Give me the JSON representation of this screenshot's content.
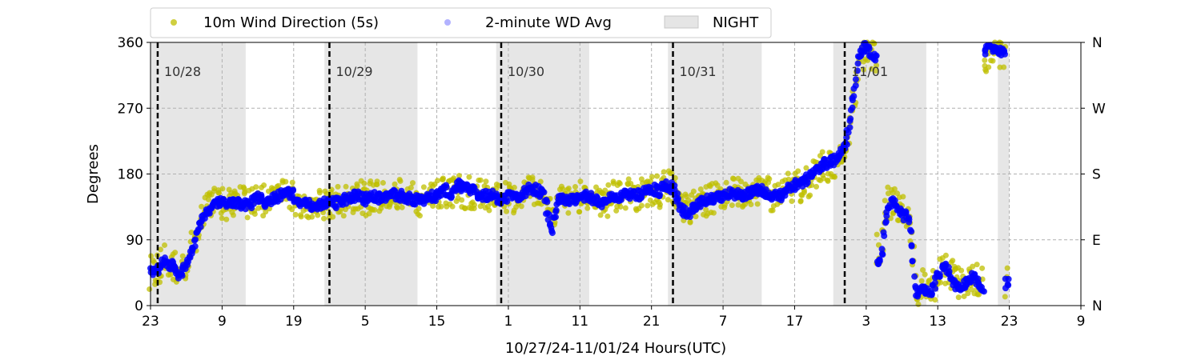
{
  "chart_data": {
    "type": "scatter",
    "title": "",
    "xlabel": "10/27/24-11/01/24  Hours(UTC)",
    "ylabel": "Degrees",
    "x_unit": "hours since 10/27 00:00 UTC",
    "xlim": [
      23,
      153
    ],
    "ylim": [
      0,
      360
    ],
    "x_ticks": [
      {
        "x": 23,
        "label": "23"
      },
      {
        "x": 33,
        "label": "9"
      },
      {
        "x": 43,
        "label": "19"
      },
      {
        "x": 53,
        "label": "5"
      },
      {
        "x": 63,
        "label": "15"
      },
      {
        "x": 73,
        "label": "1"
      },
      {
        "x": 83,
        "label": "11"
      },
      {
        "x": 93,
        "label": "21"
      },
      {
        "x": 103,
        "label": "7"
      },
      {
        "x": 113,
        "label": "17"
      },
      {
        "x": 123,
        "label": "3"
      },
      {
        "x": 133,
        "label": "13"
      },
      {
        "x": 143,
        "label": "23"
      },
      {
        "x": 153,
        "label": "9"
      }
    ],
    "y_ticks": [
      0,
      90,
      180,
      270,
      360
    ],
    "y2_ticks": [
      {
        "y": 0,
        "label": "N"
      },
      {
        "y": 90,
        "label": "E"
      },
      {
        "y": 180,
        "label": "S"
      },
      {
        "y": 270,
        "label": "W"
      },
      {
        "y": 360,
        "label": "N"
      }
    ],
    "grid": true,
    "legend": {
      "placement": "top",
      "entries": [
        {
          "label": "10m Wind Direction (5s)",
          "color": "#bfbf00",
          "marker": "circle"
        },
        {
          "label": "2-minute WD Avg",
          "color": "#0000ff",
          "marker": "circle",
          "alpha": 0.3
        },
        {
          "label": "NIGHT",
          "color": "#d3d3d3",
          "marker": "patch"
        }
      ]
    },
    "night_periods": [
      [
        23,
        36.3
      ],
      [
        47.3,
        60.3
      ],
      [
        71.3,
        84.3
      ],
      [
        95.3,
        108.4
      ],
      [
        118.4,
        131.4
      ],
      [
        141.4,
        143.0
      ]
    ],
    "day_markers": [
      {
        "x": 24,
        "label": "10/28"
      },
      {
        "x": 48,
        "label": "10/29"
      },
      {
        "x": 72,
        "label": "10/30"
      },
      {
        "x": 96,
        "label": "10/31"
      },
      {
        "x": 120,
        "label": "11/01"
      }
    ],
    "series": [
      {
        "name": "10m Wind Direction (5s)",
        "color": "#bfbf00",
        "x": [
          23,
          24,
          25,
          26,
          27,
          28,
          29,
          30,
          31,
          32,
          33,
          34,
          35,
          36,
          37,
          38,
          39,
          40,
          41,
          42,
          43,
          44,
          45,
          46,
          47,
          48,
          49,
          50,
          51,
          52,
          53,
          54,
          55,
          56,
          57,
          58,
          59,
          60,
          61,
          62,
          63,
          64,
          65,
          66,
          67,
          68,
          69,
          70,
          71,
          72,
          73,
          74,
          75,
          76,
          77,
          78,
          79,
          80,
          81,
          82,
          83,
          84,
          85,
          86,
          87,
          88,
          89,
          90,
          91,
          92,
          93,
          94,
          95,
          96,
          97,
          98,
          99,
          100,
          101,
          102,
          103,
          104,
          105,
          106,
          107,
          108,
          109,
          110,
          111,
          112,
          113,
          114,
          115,
          116,
          117,
          118,
          119,
          120,
          121,
          122,
          123,
          124,
          125,
          126,
          127,
          128,
          129,
          130,
          131,
          132,
          133,
          134,
          135,
          136,
          137,
          138,
          139,
          140,
          141,
          142,
          143
        ],
        "y": [
          45,
          50,
          65,
          60,
          45,
          60,
          85,
          115,
          130,
          140,
          140,
          138,
          142,
          140,
          140,
          150,
          140,
          145,
          150,
          155,
          148,
          140,
          140,
          135,
          140,
          142,
          140,
          145,
          148,
          150,
          145,
          150,
          148,
          150,
          152,
          150,
          148,
          145,
          145,
          150,
          150,
          155,
          150,
          160,
          155,
          155,
          150,
          150,
          150,
          145,
          150,
          148,
          152,
          160,
          155,
          150,
          120,
          145,
          145,
          145,
          150,
          150,
          145,
          140,
          145,
          148,
          150,
          152,
          150,
          155,
          160,
          155,
          165,
          160,
          140,
          130,
          138,
          140,
          145,
          148,
          150,
          155,
          152,
          150,
          155,
          160,
          155,
          150,
          150,
          160,
          162,
          165,
          170,
          180,
          190,
          190,
          200,
          210,
          260,
          340,
          350,
          340,
          80,
          140,
          140,
          130,
          130,
          20,
          30,
          20,
          40,
          50,
          40,
          30,
          35,
          40,
          30,
          340,
          345,
          340,
          30
        ]
      },
      {
        "name": "2-minute WD Avg",
        "color": "#0000ff",
        "x": [
          23,
          24,
          25,
          26,
          27,
          28,
          29,
          30,
          31,
          32,
          33,
          34,
          35,
          36,
          37,
          38,
          39,
          40,
          41,
          42,
          43,
          44,
          45,
          46,
          47,
          48,
          49,
          50,
          51,
          52,
          53,
          54,
          55,
          56,
          57,
          58,
          59,
          60,
          61,
          62,
          63,
          64,
          65,
          66,
          67,
          68,
          69,
          70,
          71,
          72,
          73,
          74,
          75,
          76,
          77,
          78,
          79,
          80,
          81,
          82,
          83,
          84,
          85,
          86,
          87,
          88,
          89,
          90,
          91,
          92,
          93,
          94,
          95,
          96,
          97,
          98,
          99,
          100,
          101,
          102,
          103,
          104,
          105,
          106,
          107,
          108,
          109,
          110,
          111,
          112,
          113,
          114,
          115,
          116,
          117,
          118,
          119,
          120,
          121,
          122,
          123,
          124,
          125,
          126,
          127,
          128,
          129,
          130,
          131,
          132,
          133,
          134,
          135,
          136,
          137,
          138,
          139,
          140,
          141,
          142,
          143
        ],
        "y": [
          45,
          50,
          60,
          55,
          40,
          55,
          80,
          115,
          128,
          138,
          140,
          138,
          140,
          138,
          140,
          148,
          140,
          145,
          150,
          158,
          150,
          140,
          138,
          135,
          140,
          142,
          140,
          145,
          148,
          150,
          145,
          150,
          148,
          150,
          152,
          150,
          148,
          145,
          145,
          150,
          150,
          160,
          150,
          165,
          160,
          160,
          150,
          150,
          150,
          145,
          150,
          148,
          152,
          160,
          158,
          150,
          100,
          145,
          145,
          145,
          150,
          150,
          145,
          140,
          145,
          148,
          150,
          152,
          150,
          155,
          160,
          155,
          165,
          160,
          135,
          125,
          135,
          140,
          145,
          148,
          150,
          155,
          152,
          150,
          155,
          160,
          155,
          150,
          150,
          160,
          165,
          168,
          175,
          185,
          195,
          195,
          205,
          215,
          270,
          345,
          355,
          340,
          60,
          140,
          140,
          125,
          120,
          10,
          25,
          15,
          40,
          55,
          35,
          25,
          30,
          40,
          25,
          350,
          350,
          345,
          30
        ]
      }
    ]
  }
}
